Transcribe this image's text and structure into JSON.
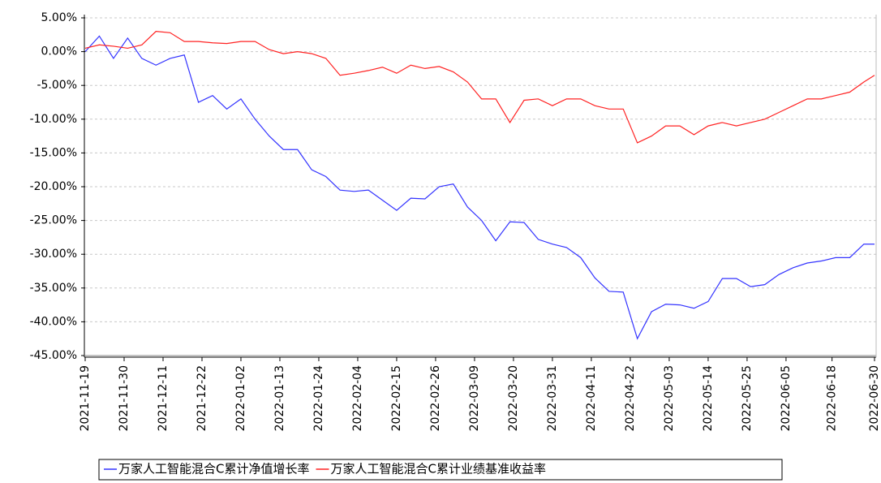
{
  "chart_data": {
    "type": "line",
    "x": [
      "2021-11-19",
      "2021-11-23",
      "2021-11-27",
      "2021-12-01",
      "2021-12-05",
      "2021-12-09",
      "2021-12-13",
      "2021-12-17",
      "2021-12-21",
      "2021-12-25",
      "2021-12-29",
      "2022-01-02",
      "2022-01-06",
      "2022-01-10",
      "2022-01-14",
      "2022-01-18",
      "2022-01-22",
      "2022-01-26",
      "2022-01-30",
      "2022-02-03",
      "2022-02-07",
      "2022-02-11",
      "2022-02-15",
      "2022-02-19",
      "2022-02-23",
      "2022-02-27",
      "2022-03-03",
      "2022-03-07",
      "2022-03-11",
      "2022-03-15",
      "2022-03-19",
      "2022-03-23",
      "2022-03-27",
      "2022-03-31",
      "2022-04-04",
      "2022-04-08",
      "2022-04-12",
      "2022-04-16",
      "2022-04-20",
      "2022-04-24",
      "2022-04-28",
      "2022-05-02",
      "2022-05-06",
      "2022-05-10",
      "2022-05-14",
      "2022-05-18",
      "2022-05-22",
      "2022-05-26",
      "2022-05-30",
      "2022-06-03",
      "2022-06-07",
      "2022-06-11",
      "2022-06-15",
      "2022-06-19",
      "2022-06-23",
      "2022-06-27",
      "2022-06-30"
    ],
    "series": [
      {
        "name": "万家人工智能混合C累计净值增长率",
        "color": "#3333ff",
        "values": [
          0,
          2.3,
          -1,
          2,
          -1,
          -2,
          -1,
          -0.5,
          -7.5,
          -6.5,
          -8.5,
          -7,
          -10,
          -12.5,
          -14.5,
          -14.5,
          -17.5,
          -18.5,
          -20.5,
          -20.7,
          -20.5,
          -22,
          -23.5,
          -21.7,
          -21.8,
          -20,
          -19.6,
          -23,
          -25,
          -28,
          -25.2,
          -25.3,
          -27.8,
          -28.5,
          -29,
          -30.5,
          -33.5,
          -35.5,
          -35.6,
          -42.5,
          -38.5,
          -37.4,
          -37.5,
          -38,
          -37,
          -33.6,
          -33.6,
          -34.8,
          -34.5,
          -33,
          -32,
          -31.3,
          -31,
          -30.5,
          -30.5,
          -28.5,
          -28.5
        ]
      },
      {
        "name": "万家人工智能混合C累计业绩基准收益率",
        "color": "#ff2222",
        "values": [
          0.5,
          1,
          0.8,
          0.5,
          1,
          3,
          2.8,
          1.5,
          1.5,
          1.3,
          1.2,
          1.5,
          1.5,
          0.3,
          -0.3,
          0,
          -0.3,
          -1,
          -3.5,
          -3.2,
          -2.8,
          -2.3,
          -3.2,
          -2,
          -2.5,
          -2.2,
          -3,
          -4.5,
          -7,
          -7,
          -10.5,
          -7.2,
          -7,
          -8,
          -7,
          -7,
          -8,
          -8.5,
          -8.5,
          -13.5,
          -12.5,
          -11,
          -11,
          -12.3,
          -11,
          -10.5,
          -11,
          -10.5,
          -10,
          -9,
          -8,
          -7,
          -7,
          -6.5,
          -6,
          -4.5,
          -3.5
        ]
      }
    ],
    "xlim": [
      "2021-11-19",
      "2022-06-30"
    ],
    "xticks": [
      "2021-11-19",
      "2021-11-30",
      "2021-12-11",
      "2021-12-22",
      "2022-01-02",
      "2022-01-13",
      "2022-01-24",
      "2022-02-04",
      "2022-02-15",
      "2022-02-26",
      "2022-03-09",
      "2022-03-20",
      "2022-03-31",
      "2022-04-11",
      "2022-04-22",
      "2022-05-03",
      "2022-05-14",
      "2022-05-25",
      "2022-06-05",
      "2022-06-18",
      "2022-06-30"
    ],
    "ylim": [
      -45,
      5
    ],
    "yticks": [
      {
        "value": 5,
        "label": "5.00%"
      },
      {
        "value": 0,
        "label": "0.00%"
      },
      {
        "value": -5,
        "label": "-5.00%"
      },
      {
        "value": -10,
        "label": "-10.00%"
      },
      {
        "value": -15,
        "label": "-15.00%"
      },
      {
        "value": -20,
        "label": "-20.00%"
      },
      {
        "value": -25,
        "label": "-25.00%"
      },
      {
        "value": -30,
        "label": "-30.00%"
      },
      {
        "value": -35,
        "label": "-35.00%"
      },
      {
        "value": -40,
        "label": "-40.00%"
      },
      {
        "value": -45,
        "label": "-45.00%"
      }
    ],
    "grid": true,
    "legend": "bottom"
  }
}
